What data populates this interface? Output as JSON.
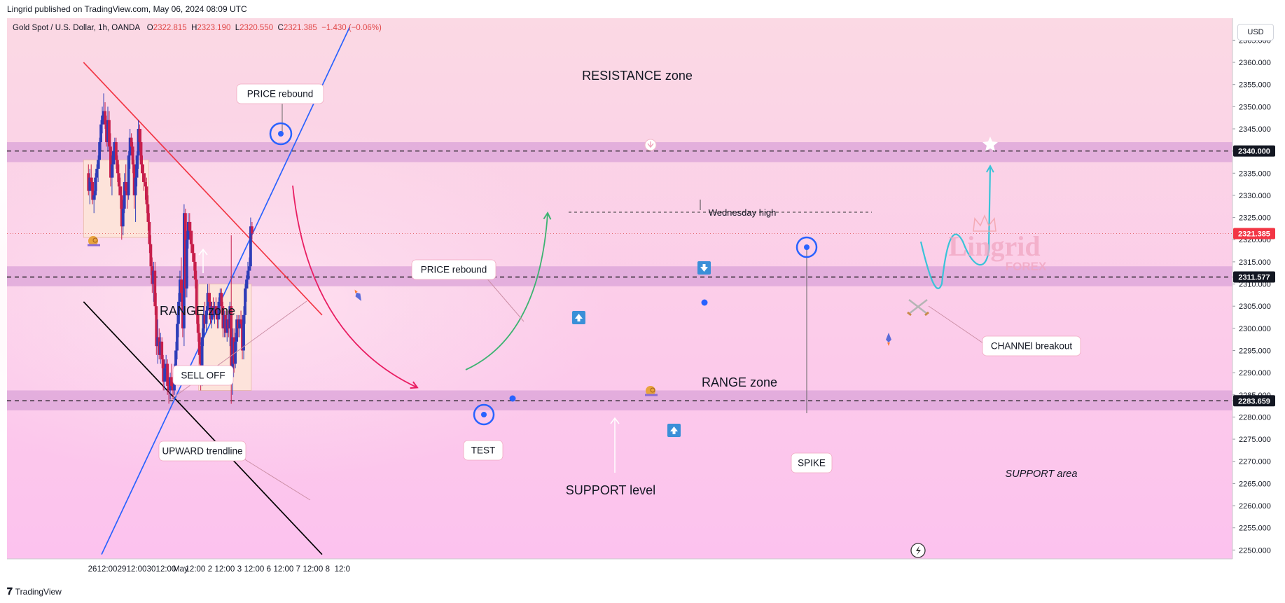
{
  "header": {
    "published": "Lingrid published on TradingView.com, May 06, 2024 08:09 UTC",
    "symbol": "Gold Spot / U.S. Dollar, 1h, OANDA",
    "o_label": "O",
    "o": "2322.815",
    "h_label": "H",
    "h": "2323.190",
    "l_label": "L",
    "l": "2320.550",
    "c_label": "C",
    "c": "2321.385",
    "change": "−1.430 (−0.06%)",
    "currency": "USD"
  },
  "footer": {
    "brand": "TradingView"
  },
  "colors": {
    "background_top": "#fbdbe6",
    "background_bottom": "#fcc3ec",
    "up_candle": "#2e3db8",
    "down_candle": "#c71f4b",
    "channel_upper": "#f23645",
    "channel_lower": "#000000",
    "trendline": "#2962ff",
    "range_box": "#fde4d8",
    "level_band": "#dba3d8",
    "projection": "#39c3d8",
    "selloff_arrow": "#e91e63",
    "rebound_arrow": "#3cb371"
  },
  "chart_data": {
    "type": "candlestick",
    "y_range": [
      2248,
      2370
    ],
    "y_ticks": [
      2250,
      2255,
      2260,
      2265,
      2270,
      2275,
      2280,
      2285,
      2290,
      2295,
      2300,
      2305,
      2310,
      2315,
      2320,
      2325,
      2330,
      2335,
      2340,
      2345,
      2350,
      2355,
      2360,
      2365
    ],
    "x_ticks": [
      {
        "label": "26",
        "x": -10.6
      },
      {
        "label": "12:00",
        "x": 0
      },
      {
        "label": "29",
        "x": 10.6
      },
      {
        "label": "12:00",
        "x": 21.2
      },
      {
        "label": "30",
        "x": 31.8
      },
      {
        "label": "12:00",
        "x": 42.4
      },
      {
        "label": "May",
        "x": 53.0
      },
      {
        "label": "12:00",
        "x": 63.6
      },
      {
        "label": "2",
        "x": 74.2
      },
      {
        "label": "12:00",
        "x": 84.8
      },
      {
        "label": "3",
        "x": 95.4
      },
      {
        "label": "12:00",
        "x": 106.0
      },
      {
        "label": "6",
        "x": 116.6
      },
      {
        "label": "12:00",
        "x": 127.2
      },
      {
        "label": "7",
        "x": 137.8
      },
      {
        "label": "12:00",
        "x": 148.4
      },
      {
        "label": "8",
        "x": 159.0
      },
      {
        "label": "12:0",
        "x": 169.6
      }
    ],
    "price_labels": [
      {
        "value": 2340.0,
        "text": "2340.000",
        "style": "dark"
      },
      {
        "value": 2321.385,
        "text": "2321.385",
        "style": "red"
      },
      {
        "value": 2311.577,
        "text": "2311.577",
        "style": "dark"
      },
      {
        "value": 2283.659,
        "text": "2283.659",
        "style": "dark"
      }
    ],
    "candles": [
      [
        -13.5,
        2335,
        2337,
        2330,
        2331
      ],
      [
        -12.5,
        2331,
        2336,
        2328,
        2334
      ],
      [
        -11.5,
        2334,
        2337,
        2331,
        2333
      ],
      [
        -10.5,
        2333,
        2334,
        2328,
        2329
      ],
      [
        -9.5,
        2329,
        2331,
        2326,
        2330
      ],
      [
        -8.5,
        2330,
        2335,
        2329,
        2334
      ],
      [
        -7.5,
        2334,
        2337,
        2331,
        2336
      ],
      [
        -6.5,
        2336,
        2339,
        2333,
        2338
      ],
      [
        -5.5,
        2338,
        2343,
        2336,
        2342
      ],
      [
        -4.5,
        2342,
        2347,
        2340,
        2346
      ],
      [
        -3.5,
        2346,
        2350,
        2344,
        2348
      ],
      [
        -2.5,
        2348,
        2353,
        2346,
        2349
      ],
      [
        -1.5,
        2349,
        2351,
        2345,
        2346
      ],
      [
        -0.5,
        2346,
        2348,
        2341,
        2342
      ],
      [
        0.5,
        2342,
        2350,
        2340,
        2347
      ],
      [
        1.5,
        2347,
        2349,
        2340,
        2341
      ],
      [
        2.5,
        2341,
        2344,
        2332,
        2334
      ],
      [
        3.5,
        2334,
        2339,
        2330,
        2337
      ],
      [
        4.5,
        2337,
        2342,
        2334,
        2340
      ],
      [
        5.5,
        2340,
        2343,
        2337,
        2342
      ],
      [
        6.5,
        2342,
        2343,
        2336,
        2338
      ],
      [
        7.5,
        2338,
        2339,
        2333,
        2335
      ],
      [
        8.5,
        2335,
        2337,
        2330,
        2332
      ],
      [
        9.5,
        2332,
        2334,
        2327,
        2330
      ],
      [
        10.5,
        2330,
        2332,
        2320,
        2323
      ],
      [
        11.5,
        2323,
        2329,
        2321,
        2327
      ],
      [
        12.5,
        2327,
        2335,
        2326,
        2333
      ],
      [
        13.5,
        2333,
        2337,
        2330,
        2331
      ],
      [
        14.5,
        2331,
        2333,
        2327,
        2330
      ],
      [
        15.5,
        2330,
        2340,
        2329,
        2339
      ],
      [
        16.5,
        2339,
        2345,
        2336,
        2343
      ],
      [
        17.5,
        2343,
        2344,
        2339,
        2341
      ],
      [
        18.5,
        2341,
        2342,
        2335,
        2337
      ],
      [
        19.5,
        2337,
        2338,
        2327,
        2330
      ],
      [
        20.5,
        2330,
        2337,
        2324,
        2334
      ],
      [
        21.5,
        2334,
        2340,
        2332,
        2339
      ],
      [
        22.5,
        2339,
        2347,
        2336,
        2345
      ],
      [
        23.5,
        2345,
        2346,
        2340,
        2342
      ],
      [
        24.5,
        2342,
        2345,
        2335,
        2337
      ],
      [
        25.5,
        2337,
        2339,
        2333,
        2335
      ],
      [
        26.5,
        2335,
        2337,
        2331,
        2333
      ],
      [
        27.5,
        2333,
        2335,
        2329,
        2332
      ],
      [
        28.5,
        2332,
        2334,
        2326,
        2328
      ],
      [
        29.5,
        2328,
        2330,
        2322,
        2324
      ],
      [
        30.5,
        2324,
        2326,
        2317,
        2319
      ],
      [
        31.5,
        2319,
        2321,
        2312,
        2314
      ],
      [
        32.5,
        2314,
        2316,
        2308,
        2310
      ],
      [
        33.5,
        2310,
        2315,
        2306,
        2313
      ],
      [
        34.5,
        2313,
        2315,
        2303,
        2305
      ],
      [
        35.5,
        2305,
        2308,
        2294,
        2296
      ],
      [
        36.5,
        2296,
        2302,
        2292,
        2298
      ],
      [
        37.5,
        2298,
        2300,
        2293,
        2294
      ],
      [
        38.5,
        2294,
        2299,
        2292,
        2297
      ],
      [
        39.5,
        2297,
        2298,
        2291,
        2293
      ],
      [
        40.5,
        2293,
        2294,
        2286,
        2288
      ],
      [
        41.5,
        2288,
        2293,
        2286,
        2291
      ],
      [
        42.5,
        2291,
        2294,
        2288,
        2292
      ],
      [
        43.5,
        2292,
        2293,
        2285,
        2287
      ],
      [
        44.5,
        2287,
        2289,
        2283,
        2286
      ],
      [
        45.5,
        2286,
        2290,
        2284,
        2289
      ],
      [
        46.5,
        2289,
        2292,
        2286,
        2287
      ],
      [
        47.5,
        2287,
        2290,
        2284,
        2286
      ],
      [
        48.5,
        2286,
        2292,
        2285,
        2291
      ],
      [
        49.5,
        2291,
        2297,
        2289,
        2295
      ],
      [
        50.5,
        2295,
        2303,
        2293,
        2301
      ],
      [
        51.5,
        2301,
        2308,
        2298,
        2306
      ],
      [
        52.5,
        2306,
        2313,
        2304,
        2311
      ],
      [
        53.5,
        2311,
        2316,
        2305,
        2308
      ],
      [
        54.5,
        2308,
        2311,
        2298,
        2300
      ],
      [
        55.5,
        2300,
        2328,
        2296,
        2326
      ],
      [
        56.5,
        2326,
        2327,
        2307,
        2309
      ],
      [
        57.5,
        2309,
        2322,
        2307,
        2320
      ],
      [
        58.5,
        2320,
        2326,
        2318,
        2324
      ],
      [
        59.5,
        2324,
        2326,
        2320,
        2322
      ],
      [
        60.5,
        2322,
        2324,
        2317,
        2319
      ],
      [
        61.5,
        2319,
        2322,
        2315,
        2317
      ],
      [
        62.5,
        2317,
        2319,
        2313,
        2315
      ],
      [
        63.5,
        2315,
        2317,
        2309,
        2311
      ],
      [
        64.5,
        2311,
        2313,
        2301,
        2303
      ],
      [
        65.5,
        2303,
        2305,
        2297,
        2299
      ],
      [
        66.5,
        2299,
        2301,
        2292,
        2294
      ],
      [
        67.5,
        2294,
        2296,
        2286,
        2288
      ],
      [
        68.5,
        2288,
        2300,
        2287,
        2298
      ],
      [
        69.5,
        2298,
        2305,
        2296,
        2303
      ],
      [
        70.5,
        2303,
        2306,
        2300,
        2301
      ],
      [
        71.5,
        2301,
        2305,
        2299,
        2304
      ],
      [
        72.5,
        2304,
        2310,
        2303,
        2308
      ],
      [
        73.5,
        2308,
        2310,
        2305,
        2306
      ],
      [
        74.5,
        2306,
        2308,
        2301,
        2302
      ],
      [
        75.5,
        2302,
        2306,
        2300,
        2305
      ],
      [
        76.5,
        2305,
        2307,
        2302,
        2303
      ],
      [
        77.5,
        2303,
        2306,
        2301,
        2305
      ],
      [
        78.5,
        2305,
        2307,
        2302,
        2304
      ],
      [
        79.5,
        2304,
        2305,
        2300,
        2302
      ],
      [
        80.5,
        2302,
        2307,
        2300,
        2306
      ],
      [
        81.5,
        2306,
        2309,
        2304,
        2308
      ],
      [
        82.5,
        2308,
        2309,
        2303,
        2305
      ],
      [
        83.5,
        2305,
        2306,
        2298,
        2300
      ],
      [
        84.5,
        2300,
        2304,
        2298,
        2303
      ],
      [
        85.5,
        2303,
        2304,
        2298,
        2299
      ],
      [
        86.5,
        2299,
        2303,
        2297,
        2302
      ],
      [
        87.5,
        2302,
        2304,
        2298,
        2300
      ],
      [
        88.5,
        2300,
        2306,
        2296,
        2305
      ],
      [
        89.5,
        2305,
        2321,
        2283,
        2289
      ],
      [
        90.5,
        2289,
        2300,
        2285,
        2298
      ],
      [
        91.5,
        2298,
        2300,
        2290,
        2292
      ],
      [
        92.5,
        2292,
        2299,
        2291,
        2297
      ],
      [
        93.5,
        2297,
        2303,
        2295,
        2302
      ],
      [
        94.5,
        2302,
        2303,
        2298,
        2300
      ],
      [
        95.5,
        2300,
        2303,
        2298,
        2302
      ],
      [
        96.5,
        2302,
        2304,
        2300,
        2301
      ],
      [
        97.5,
        2301,
        2303,
        2293,
        2295
      ],
      [
        98.5,
        2295,
        2305,
        2293,
        2303
      ],
      [
        99.5,
        2303,
        2310,
        2301,
        2309
      ],
      [
        100.5,
        2309,
        2312,
        2306,
        2311
      ],
      [
        101.5,
        2311,
        2315,
        2309,
        2313
      ],
      [
        102.5,
        2313,
        2316,
        2311,
        2314
      ],
      [
        103.5,
        2314,
        2325,
        2313,
        2323
      ],
      [
        104.5,
        2323,
        2324,
        2320,
        2321.4
      ]
    ],
    "trendlines": [
      {
        "name": "channel-upper",
        "from": [
          -17,
          2360
        ],
        "to": [
          155,
          2303
        ]
      },
      {
        "name": "channel-lower",
        "from": [
          -17,
          2306
        ],
        "to": [
          155,
          2249
        ]
      },
      {
        "name": "upward-trendline",
        "from": [
          -4,
          2249
        ],
        "to": [
          175,
          2368
        ]
      }
    ],
    "zones": [
      {
        "name": "resistance-band",
        "from": 2337.5,
        "to": 2342
      },
      {
        "name": "mid-band",
        "from": 2309.5,
        "to": 2314
      },
      {
        "name": "support-band",
        "from": 2281.5,
        "to": 2286
      }
    ],
    "range_boxes": [
      {
        "name": "range-box-1",
        "x": [
          -17,
          30
        ],
        "y": [
          2320.5,
          2338
        ]
      },
      {
        "name": "range-box-2",
        "x": [
          66,
          104
        ],
        "y": [
          2286,
          2310
        ]
      }
    ],
    "annotations": {
      "resistance_zone": "RESISTANCE zone",
      "price_rebound_1": "PRICE rebound",
      "range_zone_1": "RANGE zone",
      "sell_off": "SELL OFF",
      "price_rebound_2": "PRICE rebound",
      "wednesday_high": "Wednesday high",
      "range_zone_2": "RANGE zone",
      "test": "TEST",
      "upward_trendline": "UPWARD trendline",
      "support_level": "SUPPORT level",
      "spike": "SPIKE",
      "channel_breakout": "CHANNEl breakout",
      "support_area": "SUPPORT area",
      "watermark_main": "Lingrid",
      "watermark_sub": "FOREX"
    }
  }
}
